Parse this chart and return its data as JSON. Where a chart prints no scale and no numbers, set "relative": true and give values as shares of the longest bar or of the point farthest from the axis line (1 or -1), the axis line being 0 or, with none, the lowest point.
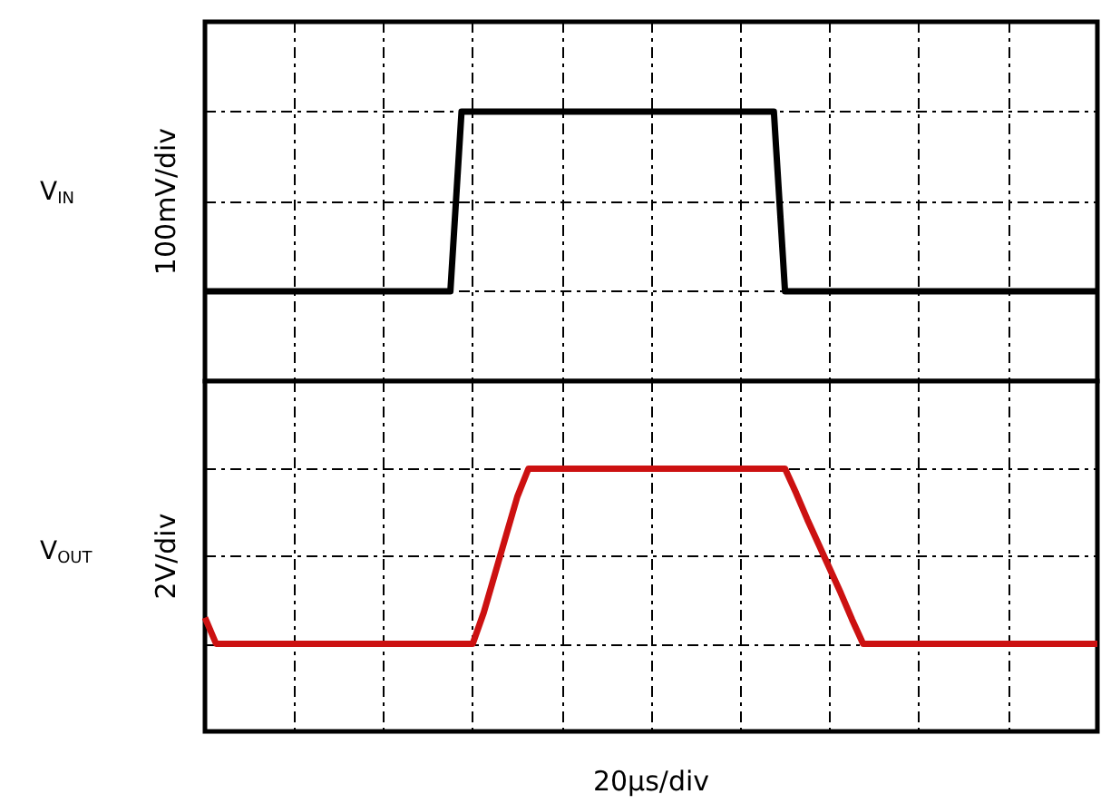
{
  "chart_data": [
    {
      "type": "line",
      "ylabel": "100mV/div",
      "relative": true,
      "grid": true,
      "categories": [
        null,
        null,
        null,
        null,
        null,
        null,
        null,
        null,
        null,
        null,
        null,
        null,
        null,
        null,
        null,
        null,
        null,
        null,
        null,
        null,
        null,
        null,
        null,
        null,
        null,
        null,
        null,
        null,
        null,
        null,
        null,
        null,
        null,
        null,
        null,
        null,
        null,
        null,
        null,
        null,
        null,
        null,
        null,
        null,
        null,
        null,
        null,
        null,
        null,
        null,
        null,
        null,
        null,
        null,
        null,
        null,
        null,
        null,
        null,
        null,
        null,
        null,
        null,
        null,
        null,
        null,
        null,
        null,
        null,
        null,
        null,
        null,
        null,
        null,
        null,
        null,
        null,
        null,
        null,
        null,
        null
      ],
      "series": [
        {
          "name": "V$_{IN}$",
          "color": "#000000",
          "values": [
            0,
            0,
            0,
            0,
            0,
            0,
            0,
            0,
            0,
            0,
            0,
            0,
            0,
            0,
            0,
            0,
            0,
            0,
            0,
            0,
            0,
            0,
            0,
            1,
            1,
            1,
            1,
            1,
            1,
            1,
            1,
            1,
            1,
            1,
            1,
            1,
            1,
            1,
            1,
            1,
            1,
            1,
            1,
            1,
            1,
            1,
            1,
            1,
            1,
            1,
            1,
            1,
            0,
            0,
            0,
            0,
            0,
            0,
            0,
            0,
            0,
            0,
            0,
            0,
            0,
            0,
            0,
            0,
            0,
            0,
            0,
            0,
            0,
            0,
            0,
            0,
            0,
            0,
            0,
            0,
            0
          ]
        }
      ]
    },
    {
      "type": "line",
      "ylabel": "2V/div",
      "xlabel": "20µs/div",
      "relative": true,
      "grid": true,
      "categories": [
        null,
        null,
        null,
        null,
        null,
        null,
        null,
        null,
        null,
        null,
        null,
        null,
        null,
        null,
        null,
        null,
        null,
        null,
        null,
        null,
        null,
        null,
        null,
        null,
        null,
        null,
        null,
        null,
        null,
        null,
        null,
        null,
        null,
        null,
        null,
        null,
        null,
        null,
        null,
        null,
        null,
        null,
        null,
        null,
        null,
        null,
        null,
        null,
        null,
        null,
        null,
        null,
        null,
        null,
        null,
        null,
        null,
        null,
        null,
        null,
        null,
        null,
        null,
        null,
        null,
        null,
        null,
        null,
        null,
        null,
        null,
        null,
        null,
        null,
        null,
        null,
        null,
        null,
        null,
        null,
        null
      ],
      "series": [
        {
          "name": "V$_{OUT}$",
          "color": "#cc1111",
          "values": [
            0.15,
            0,
            0,
            0,
            0,
            0,
            0,
            0,
            0,
            0,
            0,
            0,
            0,
            0,
            0,
            0,
            0,
            0,
            0,
            0,
            0,
            0,
            0,
            0,
            0,
            0.18,
            0.4,
            0.62,
            0.84,
            1,
            1,
            1,
            1,
            1,
            1,
            1,
            1,
            1,
            1,
            1,
            1,
            1,
            1,
            1,
            1,
            1,
            1,
            1,
            1,
            1,
            1,
            1,
            1,
            0.86,
            0.71,
            0.57,
            0.43,
            0.29,
            0.14,
            0,
            0,
            0,
            0,
            0,
            0,
            0,
            0,
            0,
            0,
            0,
            0,
            0,
            0,
            0,
            0,
            0,
            0,
            0,
            0,
            0,
            0
          ]
        }
      ]
    }
  ]
}
